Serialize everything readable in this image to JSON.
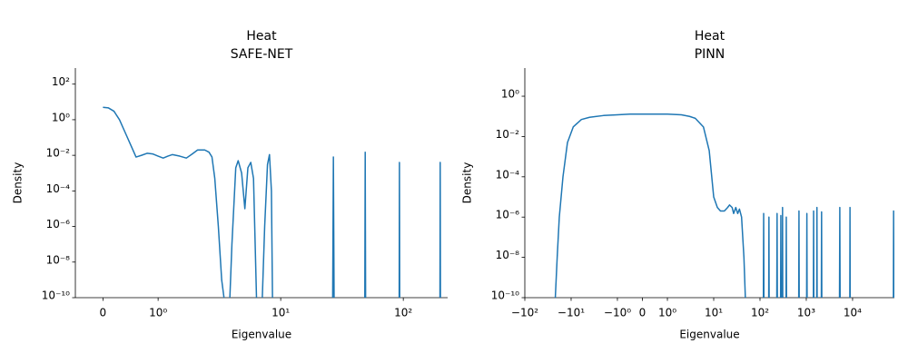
{
  "chart_data": [
    {
      "type": "line",
      "title": "Heat",
      "subtitle": "SAFE-NET",
      "xlabel": "Eigenvalue",
      "ylabel": "Density",
      "xscale": "symlog",
      "yscale": "log",
      "color": "#1f77b4",
      "xlim": [
        -0.5,
        230
      ],
      "ylim": [
        1e-10,
        800
      ],
      "xticks": [
        0,
        {
          "value": 1,
          "label": "10⁰"
        },
        {
          "value": 10,
          "label": "10¹"
        },
        {
          "value": 100,
          "label": "10²"
        }
      ],
      "yticks": [
        {
          "value": 1e-10,
          "label": "10⁻¹⁰"
        },
        {
          "value": 1e-08,
          "label": "10⁻⁸"
        },
        {
          "value": 1e-06,
          "label": "10⁻⁶"
        },
        {
          "value": 0.0001,
          "label": "10⁻⁴"
        },
        {
          "value": 0.01,
          "label": "10⁻²"
        },
        {
          "value": 1,
          "label": "10⁰"
        },
        {
          "value": 100,
          "label": "10²"
        }
      ],
      "x": [
        0,
        0.1,
        0.2,
        0.3,
        0.4,
        0.5,
        0.6,
        0.7,
        0.8,
        0.9,
        1.0,
        1.1,
        1.2,
        1.31,
        1.5,
        1.7,
        1.9,
        2.1,
        2.4,
        2.6,
        2.75,
        2.9,
        3.1,
        3.3,
        3.6,
        3.8,
        4.0,
        4.3,
        4.5,
        4.8,
        5.1,
        5.4,
        5.7,
        6.0,
        6.4,
        7.0,
        7.4,
        7.8,
        8.1,
        8.4,
        8.6,
        26.5,
        26.9,
        27.3,
        48.5,
        48.9,
        49.3,
        92.5,
        93,
        93.5,
        199,
        200,
        201
      ],
      "values": [
        5,
        4.6,
        3,
        1,
        0.2,
        0.04,
        0.008,
        0.01,
        0.013,
        0.012,
        0.009,
        0.007,
        0.009,
        0.011,
        0.009,
        0.007,
        0.012,
        0.02,
        0.02,
        0.015,
        0.008,
        0.0005,
        1e-06,
        1e-09,
        1e-11,
        1e-11,
        1e-07,
        0.002,
        0.005,
        0.001,
        1e-05,
        0.002,
        0.004,
        0.0005,
        1e-11,
        1e-11,
        1e-06,
        0.003,
        0.011,
        0.0001,
        1e-11,
        1e-11,
        0.008,
        1e-11,
        1e-11,
        0.015,
        1e-11,
        1e-11,
        0.004,
        1e-11,
        1e-11,
        0.004,
        1e-11
      ]
    },
    {
      "type": "line",
      "title": "Heat",
      "subtitle": "PINN",
      "xlabel": "Eigenvalue",
      "ylabel": "Density",
      "xscale": "symlog",
      "yscale": "log",
      "color": "#1f77b4",
      "xlim": [
        -100,
        80000
      ],
      "ylim": [
        1e-10,
        25
      ],
      "xticks": [
        {
          "value": -100,
          "label": "−10²"
        },
        {
          "value": -10,
          "label": "−10¹"
        },
        {
          "value": -1,
          "label": "−10⁰"
        },
        0,
        {
          "value": 1,
          "label": "10⁰"
        },
        {
          "value": 10,
          "label": "10¹"
        },
        {
          "value": 100,
          "label": "10²"
        },
        {
          "value": 1000,
          "label": "10³"
        },
        {
          "value": 10000,
          "label": "10⁴"
        }
      ],
      "yticks": [
        {
          "value": 1e-10,
          "label": "10⁻¹⁰"
        },
        {
          "value": 1e-08,
          "label": "10⁻⁸"
        },
        {
          "value": 1e-06,
          "label": "10⁻⁶"
        },
        {
          "value": 0.0001,
          "label": "10⁻⁴"
        },
        {
          "value": 0.01,
          "label": "10⁻²"
        },
        {
          "value": 1,
          "label": "10⁰"
        }
      ],
      "x": [
        -23,
        -20,
        -18,
        -15,
        -12,
        -9,
        -6,
        -4,
        -2,
        -1,
        -0.5,
        0,
        0.5,
        1,
        2,
        3,
        4,
        6,
        8,
        10,
        12,
        14,
        17,
        20,
        22,
        25,
        27,
        30,
        33,
        36,
        40,
        45,
        50,
        118,
        120,
        122,
        154,
        156,
        158,
        230,
        234,
        238,
        278,
        282,
        286,
        303,
        307,
        311,
        365,
        370,
        375,
        685,
        695,
        705,
        1015,
        1030,
        1045,
        1420,
        1440,
        1460,
        1680,
        1700,
        1720,
        2110,
        2140,
        2170,
        5200,
        5300,
        5400,
        8700,
        8800,
        8900,
        76000,
        77000,
        78000
      ],
      "values": [
        1e-11,
        1e-08,
        1e-06,
        0.0001,
        0.005,
        0.03,
        0.07,
        0.09,
        0.11,
        0.12,
        0.13,
        0.13,
        0.13,
        0.13,
        0.12,
        0.1,
        0.08,
        0.03,
        0.002,
        1e-05,
        3e-06,
        2e-06,
        2e-06,
        3e-06,
        4e-06,
        3e-06,
        1.5e-06,
        3e-06,
        1.5e-06,
        2.5e-06,
        1e-06,
        1e-08,
        1e-11,
        1e-11,
        1.5e-06,
        1e-11,
        1e-11,
        1e-06,
        1e-11,
        1e-11,
        1.5e-06,
        1e-11,
        1e-11,
        1.2e-06,
        1e-11,
        1e-11,
        3e-06,
        1e-11,
        1e-11,
        1e-06,
        1e-11,
        1e-11,
        2e-06,
        1e-11,
        1e-11,
        1.5e-06,
        1e-11,
        1e-11,
        2e-06,
        1e-11,
        1e-11,
        3e-06,
        1e-11,
        1e-11,
        1.8e-06,
        1e-11,
        1e-11,
        3e-06,
        1e-11,
        1e-11,
        3e-06,
        1e-11,
        1e-11,
        2e-06,
        1e-11
      ]
    }
  ]
}
